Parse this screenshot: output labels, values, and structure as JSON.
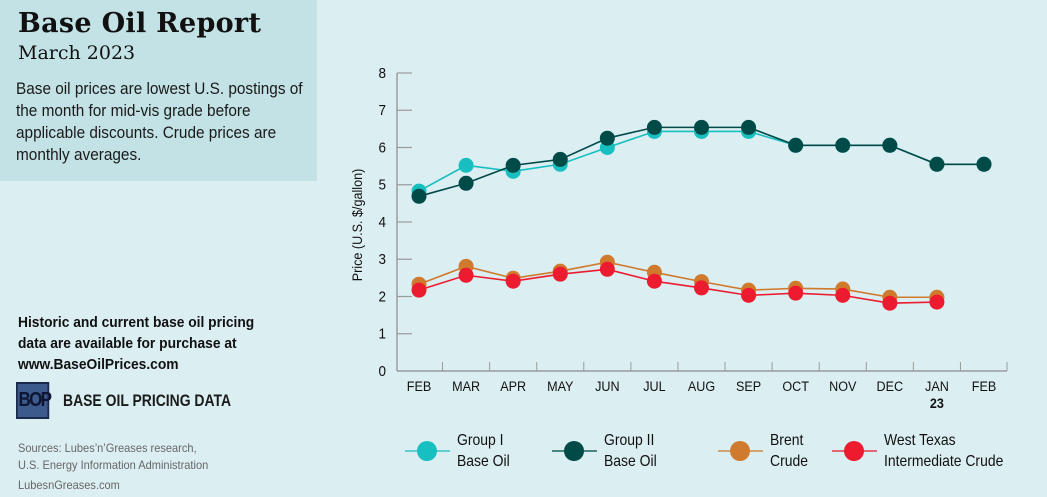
{
  "header": {
    "title": "Base Oil Report",
    "subtitle": "March 2023",
    "description": "Base oil prices are lowest U.S. postings of the month for mid-vis grade before applicable discounts. Crude prices are monthly averages."
  },
  "promo": {
    "line1": "Historic and current base oil pricing",
    "line2": "data are available for purchase at",
    "url": "www.BaseOilPrices.com"
  },
  "brand": {
    "logo_text": "BOP",
    "name": "BASE OIL PRICING DATA"
  },
  "footer": {
    "sources_line1": "Sources: Lubes’n’Greases research,",
    "sources_line2": "U.S. Energy Information Administration",
    "site": "LubesnGreases.com"
  },
  "chart_data": {
    "type": "line",
    "title": "",
    "xlabel": "",
    "ylabel": "Price (U.S. $/gallon)",
    "ylim": [
      0,
      8
    ],
    "yticks": [
      0,
      1,
      2,
      3,
      4,
      5,
      6,
      7,
      8
    ],
    "grid": false,
    "legend_position": "bottom",
    "categories": [
      "FEB",
      "MAR",
      "APR",
      "MAY",
      "JUN",
      "JUL",
      "AUG",
      "SEP",
      "OCT",
      "NOV",
      "DEC",
      "JAN",
      "FEB"
    ],
    "category_sublabels": {
      "11": "23"
    },
    "series": [
      {
        "name": "Group I Base Oil",
        "legend_lines": [
          "Group I",
          "Base Oil"
        ],
        "color": "#17bfc0",
        "values": [
          4.83,
          5.52,
          5.36,
          5.55,
          6.0,
          6.43,
          6.43,
          6.43,
          6.06,
          6.06,
          6.06,
          5.55,
          5.55
        ]
      },
      {
        "name": "Group II Base Oil",
        "legend_lines": [
          "Group II",
          "Base Oil"
        ],
        "color": "#004a48",
        "values": [
          4.69,
          5.04,
          5.52,
          5.68,
          6.25,
          6.54,
          6.54,
          6.54,
          6.06,
          6.06,
          6.06,
          5.55,
          5.55
        ]
      },
      {
        "name": "Brent Crude",
        "legend_lines": [
          "Brent",
          "Crude"
        ],
        "color": "#cf7a2c",
        "values": [
          2.33,
          2.81,
          2.49,
          2.68,
          2.92,
          2.65,
          2.4,
          2.17,
          2.22,
          2.2,
          1.98,
          1.98,
          null
        ]
      },
      {
        "name": "West Texas Intermediate Crude",
        "legend_lines": [
          "West Texas",
          "Intermediate Crude"
        ],
        "color": "#ec1b30",
        "values": [
          2.17,
          2.57,
          2.41,
          2.6,
          2.73,
          2.41,
          2.23,
          2.03,
          2.09,
          2.03,
          1.82,
          1.85,
          null
        ]
      }
    ]
  }
}
